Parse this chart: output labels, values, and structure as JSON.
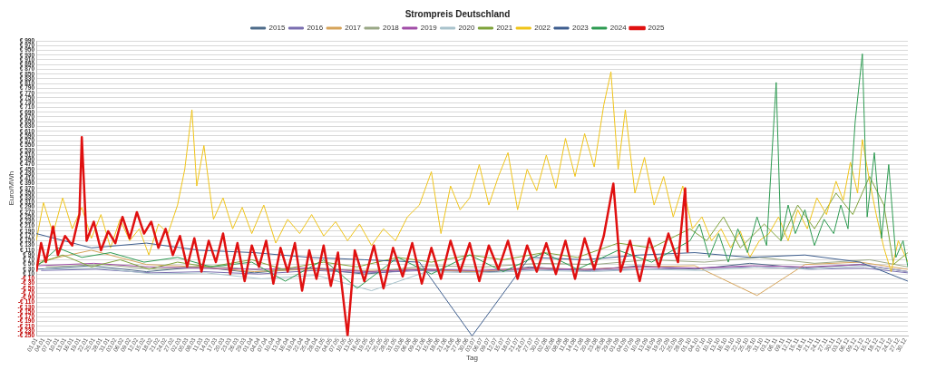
{
  "chart_data": {
    "type": "line",
    "title": "Strompreis Deutschland",
    "xlabel": "Tag",
    "ylabel": "Euro/MWh",
    "legend": "top",
    "grid": "y",
    "marker": "none",
    "line_style": "solid",
    "xlim": [
      "--01-01",
      "--12-31"
    ],
    "ylim": [
      -250,
      990
    ],
    "yticks": [
      {
        "value": 990,
        "label": "€ 990"
      },
      {
        "value": 970,
        "label": "€ 970"
      },
      {
        "value": 950,
        "label": "€ 950"
      },
      {
        "value": 930,
        "label": "€ 930"
      },
      {
        "value": 910,
        "label": "€ 910"
      },
      {
        "value": 890,
        "label": "€ 890"
      },
      {
        "value": 870,
        "label": "€ 870"
      },
      {
        "value": 850,
        "label": "€ 850"
      },
      {
        "value": 830,
        "label": "€ 830"
      },
      {
        "value": 810,
        "label": "€ 810"
      },
      {
        "value": 790,
        "label": "€ 790"
      },
      {
        "value": 770,
        "label": "€ 770"
      },
      {
        "value": 750,
        "label": "€ 750"
      },
      {
        "value": 730,
        "label": "€ 730"
      },
      {
        "value": 710,
        "label": "€ 710"
      },
      {
        "value": 690,
        "label": "€ 690"
      },
      {
        "value": 670,
        "label": "€ 670"
      },
      {
        "value": 650,
        "label": "€ 650"
      },
      {
        "value": 630,
        "label": "€ 630"
      },
      {
        "value": 610,
        "label": "€ 610"
      },
      {
        "value": 590,
        "label": "€ 590"
      },
      {
        "value": 570,
        "label": "€ 570"
      },
      {
        "value": 550,
        "label": "€ 550"
      },
      {
        "value": 530,
        "label": "€ 530"
      },
      {
        "value": 510,
        "label": "€ 510"
      },
      {
        "value": 490,
        "label": "€ 490"
      },
      {
        "value": 470,
        "label": "€ 470"
      },
      {
        "value": 450,
        "label": "€ 450"
      },
      {
        "value": 430,
        "label": "€ 430"
      },
      {
        "value": 410,
        "label": "€ 410"
      },
      {
        "value": 390,
        "label": "€ 390"
      },
      {
        "value": 370,
        "label": "€ 370"
      },
      {
        "value": 350,
        "label": "€ 350"
      },
      {
        "value": 330,
        "label": "€ 330"
      },
      {
        "value": 310,
        "label": "€ 310"
      },
      {
        "value": 290,
        "label": "€ 290"
      },
      {
        "value": 270,
        "label": "€ 270"
      },
      {
        "value": 250,
        "label": "€ 250"
      },
      {
        "value": 230,
        "label": "€ 230"
      },
      {
        "value": 210,
        "label": "€ 210"
      },
      {
        "value": 190,
        "label": "€ 190"
      },
      {
        "value": 170,
        "label": "€ 170"
      },
      {
        "value": 150,
        "label": "€ 150"
      },
      {
        "value": 130,
        "label": "€ 130"
      },
      {
        "value": 110,
        "label": "€ 110"
      },
      {
        "value": 90,
        "label": "€ 90"
      },
      {
        "value": 70,
        "label": "€ 70"
      },
      {
        "value": 50,
        "label": "€ 50"
      },
      {
        "value": 30,
        "label": "€ 30"
      },
      {
        "value": 10,
        "label": "€ 10"
      },
      {
        "value": -10,
        "label": "-€ 10"
      },
      {
        "value": -30,
        "label": "-€ 30"
      },
      {
        "value": -50,
        "label": "-€ 50"
      },
      {
        "value": -70,
        "label": "-€ 70"
      },
      {
        "value": -90,
        "label": "-€ 90"
      },
      {
        "value": -110,
        "label": "-€ 110"
      },
      {
        "value": -130,
        "label": "-€ 130"
      },
      {
        "value": -150,
        "label": "-€ 150"
      },
      {
        "value": -170,
        "label": "-€ 170"
      },
      {
        "value": -190,
        "label": "-€ 190"
      },
      {
        "value": -210,
        "label": "-€ 210"
      },
      {
        "value": -230,
        "label": "-€ 230"
      },
      {
        "value": -250,
        "label": "-€ 250"
      }
    ],
    "xticks": [
      {
        "value": "--01-01",
        "label": "01.01"
      },
      {
        "value": "--01-04",
        "label": "04.01"
      },
      {
        "value": "--01-07",
        "label": "07.01"
      },
      {
        "value": "--01-10",
        "label": "10.01"
      },
      {
        "value": "--01-13",
        "label": "13.01"
      },
      {
        "value": "--01-16",
        "label": "16.01"
      },
      {
        "value": "--01-19",
        "label": "19.01"
      },
      {
        "value": "--01-22",
        "label": "22.01"
      },
      {
        "value": "--01-25",
        "label": "25.01"
      },
      {
        "value": "--01-28",
        "label": "28.01"
      },
      {
        "value": "--01-31",
        "label": "31.01"
      },
      {
        "value": "--02-03",
        "label": "03.02"
      },
      {
        "value": "--02-06",
        "label": "06.02"
      },
      {
        "value": "--02-09",
        "label": "09.02"
      },
      {
        "value": "--02-12",
        "label": "12.02"
      },
      {
        "value": "--02-15",
        "label": "15.02"
      },
      {
        "value": "--02-18",
        "label": "18.02"
      },
      {
        "value": "--02-21",
        "label": "21.02"
      },
      {
        "value": "--02-24",
        "label": "24.02"
      },
      {
        "value": "--02-27",
        "label": "27.02"
      },
      {
        "value": "--03-02",
        "label": "02.03"
      },
      {
        "value": "--03-05",
        "label": "05.03"
      },
      {
        "value": "--03-08",
        "label": "08.03"
      },
      {
        "value": "--03-11",
        "label": "11.03"
      },
      {
        "value": "--03-14",
        "label": "14.03"
      },
      {
        "value": "--03-17",
        "label": "17.03"
      },
      {
        "value": "--03-20",
        "label": "20.03"
      },
      {
        "value": "--03-23",
        "label": "23.03"
      },
      {
        "value": "--03-26",
        "label": "26.03"
      },
      {
        "value": "--03-29",
        "label": "29.03"
      },
      {
        "value": "--04-01",
        "label": "01.04"
      },
      {
        "value": "--04-04",
        "label": "04.04"
      },
      {
        "value": "--04-07",
        "label": "07.04"
      },
      {
        "value": "--04-10",
        "label": "10.04"
      },
      {
        "value": "--04-13",
        "label": "13.04"
      },
      {
        "value": "--04-16",
        "label": "16.04"
      },
      {
        "value": "--04-19",
        "label": "19.04"
      },
      {
        "value": "--04-22",
        "label": "22.04"
      },
      {
        "value": "--04-25",
        "label": "25.04"
      },
      {
        "value": "--04-28",
        "label": "28.04"
      },
      {
        "value": "--05-01",
        "label": "01.05"
      },
      {
        "value": "--05-04",
        "label": "04.05"
      },
      {
        "value": "--05-07",
        "label": "07.05"
      },
      {
        "value": "--05-10",
        "label": "10.05"
      },
      {
        "value": "--05-13",
        "label": "13.05"
      },
      {
        "value": "--05-16",
        "label": "16.05"
      },
      {
        "value": "--05-19",
        "label": "19.05"
      },
      {
        "value": "--05-22",
        "label": "22.05"
      },
      {
        "value": "--05-25",
        "label": "25.05"
      },
      {
        "value": "--05-28",
        "label": "28.05"
      },
      {
        "value": "--05-31",
        "label": "31.05"
      },
      {
        "value": "--06-03",
        "label": "03.06"
      },
      {
        "value": "--06-06",
        "label": "06.06"
      },
      {
        "value": "--06-09",
        "label": "09.06"
      },
      {
        "value": "--06-12",
        "label": "12.06"
      },
      {
        "value": "--06-15",
        "label": "15.06"
      },
      {
        "value": "--06-18",
        "label": "18.06"
      },
      {
        "value": "--06-21",
        "label": "21.06"
      },
      {
        "value": "--06-24",
        "label": "24.06"
      },
      {
        "value": "--06-27",
        "label": "27.06"
      },
      {
        "value": "--06-30",
        "label": "30.06"
      },
      {
        "value": "--07-03",
        "label": "03.07"
      },
      {
        "value": "--07-06",
        "label": "06.07"
      },
      {
        "value": "--07-09",
        "label": "09.07"
      },
      {
        "value": "--07-12",
        "label": "12.07"
      },
      {
        "value": "--07-15",
        "label": "15.07"
      },
      {
        "value": "--07-18",
        "label": "18.07"
      },
      {
        "value": "--07-21",
        "label": "21.07"
      },
      {
        "value": "--07-24",
        "label": "24.07"
      },
      {
        "value": "--07-27",
        "label": "27.07"
      },
      {
        "value": "--07-30",
        "label": "30.07"
      },
      {
        "value": "--08-02",
        "label": "02.08"
      },
      {
        "value": "--08-05",
        "label": "05.08"
      },
      {
        "value": "--08-08",
        "label": "08.08"
      },
      {
        "value": "--08-11",
        "label": "11.08"
      },
      {
        "value": "--08-14",
        "label": "14.08"
      },
      {
        "value": "--08-17",
        "label": "17.08"
      },
      {
        "value": "--08-20",
        "label": "20.08"
      },
      {
        "value": "--08-23",
        "label": "23.08"
      },
      {
        "value": "--08-26",
        "label": "26.08"
      },
      {
        "value": "--08-29",
        "label": "29.08"
      },
      {
        "value": "--09-01",
        "label": "01.09"
      },
      {
        "value": "--09-04",
        "label": "04.09"
      },
      {
        "value": "--09-07",
        "label": "07.09"
      },
      {
        "value": "--09-10",
        "label": "10.09"
      },
      {
        "value": "--09-13",
        "label": "13.09"
      },
      {
        "value": "--09-16",
        "label": "16.09"
      },
      {
        "value": "--09-19",
        "label": "19.09"
      },
      {
        "value": "--09-22",
        "label": "22.09"
      },
      {
        "value": "--09-25",
        "label": "25.09"
      },
      {
        "value": "--09-28",
        "label": "28.09"
      },
      {
        "value": "--10-01",
        "label": "01.10"
      },
      {
        "value": "--10-04",
        "label": "04.10"
      },
      {
        "value": "--10-07",
        "label": "07.10"
      },
      {
        "value": "--10-10",
        "label": "10.10"
      },
      {
        "value": "--10-13",
        "label": "13.10"
      },
      {
        "value": "--10-16",
        "label": "16.10"
      },
      {
        "value": "--10-19",
        "label": "19.10"
      },
      {
        "value": "--10-22",
        "label": "22.10"
      },
      {
        "value": "--10-25",
        "label": "25.10"
      },
      {
        "value": "--10-28",
        "label": "28.10"
      },
      {
        "value": "--10-31",
        "label": "31.10"
      },
      {
        "value": "--11-03",
        "label": "03.11"
      },
      {
        "value": "--11-06",
        "label": "06.11"
      },
      {
        "value": "--11-09",
        "label": "09.11"
      },
      {
        "value": "--11-12",
        "label": "12.11"
      },
      {
        "value": "--11-15",
        "label": "15.11"
      },
      {
        "value": "--11-18",
        "label": "18.11"
      },
      {
        "value": "--11-21",
        "label": "21.11"
      },
      {
        "value": "--11-24",
        "label": "24.11"
      },
      {
        "value": "--11-27",
        "label": "27.11"
      },
      {
        "value": "--11-30",
        "label": "30.11"
      },
      {
        "value": "--12-03",
        "label": "03.12"
      },
      {
        "value": "--12-06",
        "label": "06.12"
      },
      {
        "value": "--12-09",
        "label": "09.12"
      },
      {
        "value": "--12-12",
        "label": "12.12"
      },
      {
        "value": "--12-15",
        "label": "15.12"
      },
      {
        "value": "--12-18",
        "label": "18.12"
      },
      {
        "value": "--12-21",
        "label": "21.12"
      },
      {
        "value": "--12-24",
        "label": "24.12"
      },
      {
        "value": "--12-27",
        "label": "27.12"
      },
      {
        "value": "--12-30",
        "label": "30.12"
      }
    ],
    "series": [
      {
        "name": "2015",
        "color": "#4f6d8a",
        "x": [
          "--01-01",
          "--01-24",
          "--02-16",
          "--03-10",
          "--04-02",
          "--04-25",
          "--05-18",
          "--06-10",
          "--07-12",
          "--07-26",
          "--08-18",
          "--09-10",
          "--10-03",
          "--10-26",
          "--11-18",
          "--12-11",
          "--12-31"
        ],
        "values": [
          30,
          45,
          20,
          40,
          15,
          35,
          10,
          30,
          20,
          40,
          25,
          45,
          30,
          55,
          35,
          50,
          20
        ]
      },
      {
        "name": "2016",
        "color": "#7a6fb0",
        "x": [
          "--01-03",
          "--01-26",
          "--02-18",
          "--03-12",
          "--04-04",
          "--04-27",
          "--05-20",
          "--06-12",
          "--07-05",
          "--07-28",
          "--08-20",
          "--09-12",
          "--10-05",
          "--10-28",
          "--11-20",
          "--12-13",
          "--12-31"
        ],
        "values": [
          25,
          30,
          15,
          20,
          10,
          25,
          15,
          25,
          20,
          30,
          25,
          30,
          35,
          40,
          30,
          35,
          15
        ]
      },
      {
        "name": "2017",
        "color": "#d6a45a",
        "x": [
          "--01-01",
          "--01-24",
          "--02-16",
          "--03-10",
          "--04-02",
          "--04-25",
          "--05-18",
          "--06-10",
          "--07-03",
          "--07-26",
          "--08-18",
          "--09-10",
          "--10-03",
          "--10-29",
          "--11-18",
          "--12-11",
          "--12-31"
        ],
        "values": [
          60,
          110,
          50,
          40,
          20,
          30,
          25,
          30,
          20,
          35,
          30,
          40,
          45,
          -80,
          50,
          60,
          30
        ]
      },
      {
        "name": "2018",
        "color": "#9aa886",
        "x": [
          "--01-05",
          "--01-28",
          "--02-20",
          "--03-14",
          "--04-06",
          "--04-29",
          "--05-22",
          "--06-14",
          "--07-07",
          "--07-30",
          "--08-22",
          "--09-14",
          "--10-07",
          "--10-30",
          "--11-22",
          "--12-15",
          "--12-31"
        ],
        "values": [
          40,
          50,
          30,
          45,
          25,
          35,
          20,
          45,
          40,
          55,
          50,
          70,
          60,
          80,
          55,
          70,
          40
        ]
      },
      {
        "name": "2019",
        "color": "#a24fa8",
        "x": [
          "--01-02",
          "--01-25",
          "--02-17",
          "--03-11",
          "--04-03",
          "--04-26",
          "--05-19",
          "--06-11",
          "--07-04",
          "--07-27",
          "--08-19",
          "--09-11",
          "--10-04",
          "--10-27",
          "--11-19",
          "--12-12",
          "--12-31"
        ],
        "values": [
          45,
          55,
          40,
          35,
          30,
          35,
          20,
          30,
          25,
          35,
          30,
          40,
          35,
          45,
          40,
          50,
          20
        ]
      },
      {
        "name": "2020",
        "color": "#a9c3cc",
        "x": [
          "--01-04",
          "--01-27",
          "--02-19",
          "--03-13",
          "--04-05",
          "--04-28",
          "--05-21",
          "--06-13",
          "--07-06",
          "--07-29",
          "--08-21",
          "--09-13",
          "--10-06",
          "--10-29",
          "--11-21",
          "--12-14",
          "--12-31"
        ],
        "values": [
          30,
          35,
          10,
          15,
          -10,
          5,
          -60,
          20,
          15,
          25,
          20,
          30,
          25,
          40,
          30,
          45,
          20
        ]
      },
      {
        "name": "2021",
        "color": "#7fa33a",
        "x": [
          "--01-01",
          "--01-12",
          "--01-24",
          "--02-05",
          "--02-17",
          "--03-01",
          "--03-14",
          "--04-01",
          "--04-14",
          "--05-01",
          "--05-15",
          "--06-01",
          "--06-15",
          "--07-01",
          "--07-15",
          "--08-01",
          "--08-15",
          "--09-01",
          "--09-15",
          "--10-01",
          "--10-08",
          "--10-15",
          "--10-22",
          "--11-01",
          "--11-08",
          "--11-15",
          "--11-22",
          "--12-01",
          "--12-08",
          "--12-15",
          "--12-21",
          "--12-25",
          "--12-31"
        ],
        "values": [
          50,
          90,
          40,
          70,
          30,
          60,
          40,
          70,
          30,
          60,
          40,
          80,
          60,
          90,
          70,
          100,
          80,
          140,
          120,
          200,
          150,
          250,
          120,
          220,
          150,
          300,
          200,
          350,
          260,
          420,
          300,
          50,
          100
        ]
      },
      {
        "name": "2022",
        "color": "#f0c419",
        "x": [
          "--01-01",
          "--01-04",
          "--01-08",
          "--01-12",
          "--01-16",
          "--01-20",
          "--01-24",
          "--01-28",
          "--02-01",
          "--02-05",
          "--02-09",
          "--02-13",
          "--02-17",
          "--02-21",
          "--02-25",
          "--03-01",
          "--03-04",
          "--03-07",
          "--03-09",
          "--03-12",
          "--03-16",
          "--03-20",
          "--03-24",
          "--03-28",
          "--04-01",
          "--04-06",
          "--04-11",
          "--04-16",
          "--04-21",
          "--04-26",
          "--05-01",
          "--05-06",
          "--05-11",
          "--05-16",
          "--05-21",
          "--05-26",
          "--05-31",
          "--06-05",
          "--06-10",
          "--06-15",
          "--06-19",
          "--06-23",
          "--06-27",
          "--07-01",
          "--07-05",
          "--07-09",
          "--07-13",
          "--07-17",
          "--07-21",
          "--07-25",
          "--07-29",
          "--08-02",
          "--08-06",
          "--08-10",
          "--08-14",
          "--08-18",
          "--08-22",
          "--08-26",
          "--08-29",
          "--09-01",
          "--09-04",
          "--09-08",
          "--09-12",
          "--09-16",
          "--09-20",
          "--09-24",
          "--09-28",
          "--10-02",
          "--10-06",
          "--10-10",
          "--10-14",
          "--10-18",
          "--10-22",
          "--10-26",
          "--10-30",
          "--11-03",
          "--11-07",
          "--11-11",
          "--11-15",
          "--11-19",
          "--11-23",
          "--11-27",
          "--12-01",
          "--12-04",
          "--12-07",
          "--12-10",
          "--12-12",
          "--12-15",
          "--12-18",
          "--12-21",
          "--12-24",
          "--12-27",
          "--12-31"
        ],
        "values": [
          150,
          310,
          180,
          330,
          200,
          290,
          160,
          260,
          120,
          240,
          150,
          200,
          90,
          220,
          180,
          300,
          450,
          700,
          380,
          550,
          240,
          330,
          200,
          290,
          180,
          300,
          140,
          240,
          180,
          260,
          170,
          230,
          150,
          220,
          130,
          200,
          150,
          250,
          300,
          440,
          180,
          380,
          280,
          330,
          470,
          300,
          420,
          520,
          280,
          450,
          360,
          510,
          370,
          580,
          420,
          600,
          460,
          720,
          860,
          450,
          700,
          350,
          500,
          300,
          420,
          250,
          380,
          200,
          250,
          150,
          200,
          120,
          190,
          80,
          150,
          180,
          250,
          150,
          280,
          200,
          330,
          260,
          400,
          320,
          480,
          350,
          575,
          400,
          250,
          120,
          20,
          150,
          60
        ]
      },
      {
        "name": "2023",
        "color": "#3f5f8f",
        "x": [
          "--01-01",
          "--01-24",
          "--02-16",
          "--03-10",
          "--04-02",
          "--04-25",
          "--05-18",
          "--06-10",
          "--07-02",
          "--07-26",
          "--08-18",
          "--09-10",
          "--10-03",
          "--10-26",
          "--11-18",
          "--12-11",
          "--12-31"
        ],
        "values": [
          180,
          120,
          140,
          110,
          100,
          80,
          70,
          60,
          -250,
          80,
          70,
          90,
          100,
          80,
          90,
          60,
          -20
        ]
      },
      {
        "name": "2024",
        "color": "#2e9b52",
        "x": [
          "--01-01",
          "--01-10",
          "--01-20",
          "--02-01",
          "--02-15",
          "--03-01",
          "--03-15",
          "--04-01",
          "--04-15",
          "--05-01",
          "--05-15",
          "--06-01",
          "--06-15",
          "--07-01",
          "--07-15",
          "--08-01",
          "--08-15",
          "--09-01",
          "--09-15",
          "--10-01",
          "--10-05",
          "--10-09",
          "--10-13",
          "--10-17",
          "--10-21",
          "--10-25",
          "--10-29",
          "--11-02",
          "--11-06",
          "--11-08",
          "--11-11",
          "--11-14",
          "--11-18",
          "--11-22",
          "--11-26",
          "--11-30",
          "--12-03",
          "--12-06",
          "--12-09",
          "--12-12",
          "--12-14",
          "--12-17",
          "--12-20",
          "--12-23",
          "--12-26",
          "--12-29",
          "--12-31"
        ],
        "values": [
          40,
          120,
          80,
          100,
          60,
          80,
          40,
          60,
          -20,
          70,
          -50,
          80,
          10,
          90,
          20,
          100,
          30,
          110,
          60,
          150,
          220,
          80,
          180,
          60,
          200,
          100,
          250,
          130,
          815,
          150,
          300,
          180,
          280,
          130,
          240,
          180,
          300,
          200,
          650,
          935,
          250,
          520,
          160,
          470,
          80,
          150,
          40
        ]
      },
      {
        "name": "2025",
        "color": "#e01010",
        "x": [
          "--01-01",
          "--01-03",
          "--01-05",
          "--01-08",
          "--01-10",
          "--01-13",
          "--01-16",
          "--01-19",
          "--01-20",
          "--01-22",
          "--01-25",
          "--01-28",
          "--01-31",
          "--02-03",
          "--02-06",
          "--02-09",
          "--02-12",
          "--02-15",
          "--02-18",
          "--02-21",
          "--02-24",
          "--02-27",
          "--03-02",
          "--03-05",
          "--03-08",
          "--03-11",
          "--03-14",
          "--03-17",
          "--03-20",
          "--03-23",
          "--03-26",
          "--03-29",
          "--04-01",
          "--04-04",
          "--04-07",
          "--04-10",
          "--04-13",
          "--04-16",
          "--04-19",
          "--04-22",
          "--04-25",
          "--04-28",
          "--05-01",
          "--05-04",
          "--05-07",
          "--05-11",
          "--05-14",
          "--05-18",
          "--05-22",
          "--05-26",
          "--05-30",
          "--06-03",
          "--06-07",
          "--06-11",
          "--06-15",
          "--06-19",
          "--06-23",
          "--06-27",
          "--07-01",
          "--07-05",
          "--07-09",
          "--07-13",
          "--07-17",
          "--07-21",
          "--07-25",
          "--07-29",
          "--08-02",
          "--08-06",
          "--08-10",
          "--08-14",
          "--08-18",
          "--08-22",
          "--08-26",
          "--08-30",
          "--09-02",
          "--09-06",
          "--09-10",
          "--09-14",
          "--09-18",
          "--09-22",
          "--09-26",
          "--09-29",
          "--09-30"
        ],
        "values": [
          20,
          140,
          60,
          210,
          90,
          170,
          130,
          260,
          585,
          150,
          230,
          110,
          190,
          140,
          250,
          160,
          270,
          180,
          230,
          120,
          200,
          90,
          170,
          40,
          160,
          20,
          150,
          60,
          180,
          10,
          140,
          -20,
          130,
          40,
          150,
          -30,
          120,
          20,
          140,
          -60,
          110,
          -10,
          130,
          -40,
          100,
          -250,
          110,
          -20,
          130,
          -50,
          120,
          0,
          140,
          -30,
          120,
          -10,
          150,
          20,
          140,
          -20,
          130,
          30,
          150,
          -10,
          130,
          20,
          140,
          10,
          150,
          -10,
          160,
          30,
          170,
          390,
          20,
          150,
          -20,
          160,
          40,
          180,
          60,
          370,
          100
        ]
      }
    ]
  }
}
